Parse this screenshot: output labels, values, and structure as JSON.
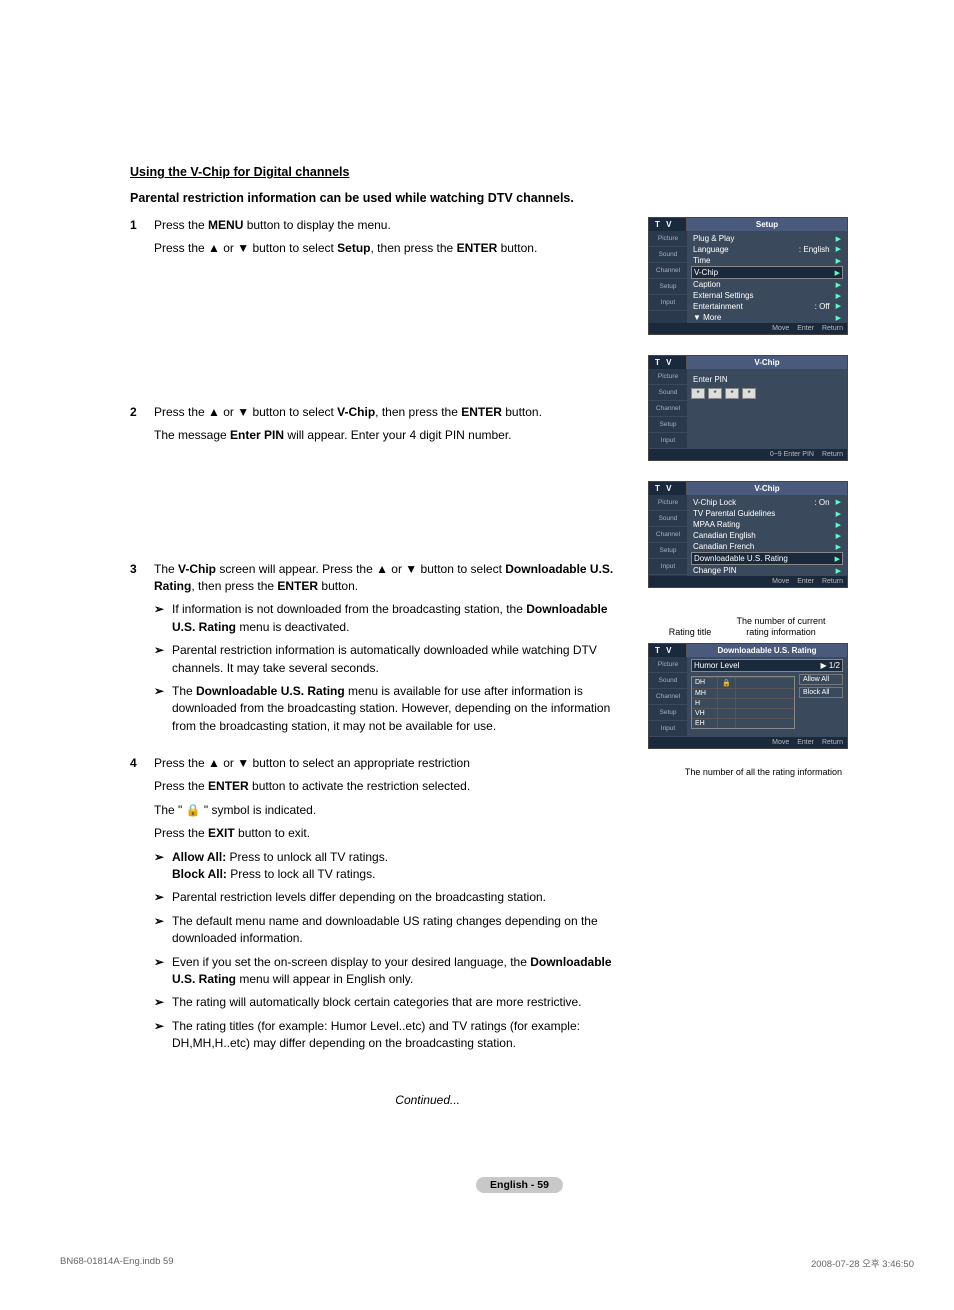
{
  "section_title": "Using the V-Chip for Digital channels",
  "subtitle": "Parental restriction information can be used while watching DTV channels.",
  "steps": [
    {
      "num": "1",
      "paras": [
        "Press the <b>MENU</b> button to display the menu.",
        "Press the ▲ or ▼ button to select <b>Setup</b>, then press the <b>ENTER</b> button."
      ],
      "subs": []
    },
    {
      "num": "2",
      "paras": [
        "Press the ▲ or ▼ button to select <b>V-Chip</b>, then press the <b>ENTER</b> button.",
        "The message <b>Enter PIN</b> will appear. Enter your 4 digit PIN number."
      ],
      "subs": []
    },
    {
      "num": "3",
      "paras": [
        "The <b>V-Chip</b> screen will appear. Press the ▲ or ▼ button to select <b>Downloadable U.S. Rating</b>, then press the <b>ENTER</b> button."
      ],
      "subs": [
        "If information is not downloaded from the broadcasting station, the <b>Downloadable U.S. Rating</b> menu is deactivated.",
        "Parental restriction information is automatically downloaded while watching DTV channels. It may take several seconds.",
        "The <b>Downloadable U.S. Rating</b> menu is available for use after information is downloaded from the broadcasting station. However, depending on the information from the broadcasting station, it may not be available for use."
      ]
    },
    {
      "num": "4",
      "paras": [
        "Press the ▲ or ▼ button to select an appropriate restriction",
        "Press the <b>ENTER</b> button to activate the restriction selected.",
        "The \" 🔒 \" symbol is indicated.",
        "Press the <b>EXIT</b> button to exit."
      ],
      "subs": [
        "<b>Allow All:</b> Press to unlock all TV ratings.<br><b>Block All:</b> Press to lock all TV ratings.",
        "Parental restriction levels differ depending on the broadcasting station.",
        "The default menu name and downloadable US rating changes depending on the downloaded information.",
        "Even if you set the on-screen display to your desired language, the <b>Downloadable U.S. Rating</b> menu will appear in English only.",
        "The rating will automatically block certain categories that are more restrictive.",
        "The rating titles (for example: Humor Level..etc) and TV ratings (for example: DH,MH,H..etc) may differ depending on the broadcasting station."
      ]
    }
  ],
  "continued": "Continued...",
  "page_label": "English - 59",
  "footer_left": "BN68-01814A-Eng.indb   59",
  "footer_right": "2008-07-28   오후 3:46:50",
  "menu1": {
    "title": "Setup",
    "side": [
      "Picture",
      "Sound",
      "Channel",
      "Setup",
      "Input"
    ],
    "rows": [
      {
        "l": "Plug & Play",
        "r": "",
        "hl": false
      },
      {
        "l": "Language",
        "r": ": English",
        "hl": false
      },
      {
        "l": "Time",
        "r": "",
        "hl": false
      },
      {
        "l": "V-Chip",
        "r": "",
        "hl": true
      },
      {
        "l": "Caption",
        "r": "",
        "hl": false
      },
      {
        "l": "External Settings",
        "r": "",
        "hl": false
      },
      {
        "l": "Entertainment",
        "r": ": Off",
        "hl": false
      },
      {
        "l": "▼ More",
        "r": "",
        "hl": false
      }
    ],
    "ftr": [
      "Move",
      "Enter",
      "Return"
    ]
  },
  "menu2": {
    "title": "V-Chip",
    "side": [
      "Picture",
      "Sound",
      "Channel",
      "Setup",
      "Input"
    ],
    "enter_label": "Enter PIN",
    "ftr": [
      "0~9 Enter PIN",
      "Return"
    ]
  },
  "menu3": {
    "title": "V-Chip",
    "side": [
      "Picture",
      "Sound",
      "Channel",
      "Setup",
      "Input"
    ],
    "rows": [
      {
        "l": "V-Chip Lock",
        "r": ": On",
        "hl": false
      },
      {
        "l": "TV Parental Guidelines",
        "r": "",
        "hl": false
      },
      {
        "l": "MPAA Rating",
        "r": "",
        "hl": false
      },
      {
        "l": "Canadian English",
        "r": "",
        "hl": false
      },
      {
        "l": "Canadian French",
        "r": "",
        "hl": false
      },
      {
        "l": "Downloadable U.S. Rating",
        "r": "",
        "hl": true
      },
      {
        "l": "Change PIN",
        "r": "",
        "hl": false
      }
    ],
    "ftr": [
      "Move",
      "Enter",
      "Return"
    ]
  },
  "callout_left": "Rating title",
  "callout_right": "The number of current rating information",
  "menu4": {
    "title": "Downloadable U.S. Rating",
    "side": [
      "Picture",
      "Sound",
      "Channel",
      "Setup",
      "Input"
    ],
    "subtitle": "Humor Level",
    "subtitle_r": "▶ 1/2",
    "levels": [
      "DH",
      "MH",
      "H",
      "VH",
      "EH"
    ],
    "side_btns": [
      "Allow All",
      "Block All"
    ],
    "ftr": [
      "Move",
      "Enter",
      "Return"
    ]
  },
  "callout_below": "The number of all the rating information",
  "colors": {
    "menu_bg": "#3a4a5c",
    "menu_dark": "#1a2a3c",
    "menu_mid": "#2a3a4c",
    "hdr_bg": "#4a5a7c",
    "arrow": "#5fc"
  }
}
